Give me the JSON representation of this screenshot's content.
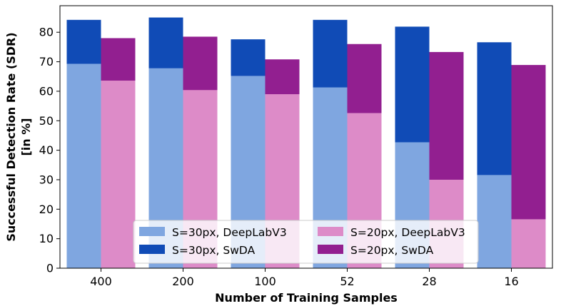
{
  "chart_data": {
    "type": "bar",
    "xlabel": "Number of Training Samples",
    "ylabel_lines": [
      "Successful Detection Rate (SDR)",
      "[in %]"
    ],
    "categories": [
      "400",
      "200",
      "100",
      "52",
      "28",
      "16"
    ],
    "ylim": [
      0,
      89
    ],
    "yticks": [
      0,
      10,
      20,
      30,
      40,
      50,
      60,
      70,
      80
    ],
    "grid": false,
    "legend_placement": "bottom-center",
    "series": [
      {
        "name": "S=30px, DeepLabV3",
        "color": "#7fa6e0",
        "group": "S=30px",
        "layer": "front",
        "values": [
          69.3,
          67.8,
          65.2,
          61.3,
          42.7,
          31.6
        ]
      },
      {
        "name": "S=30px, SwDA",
        "color": "#104bb6",
        "group": "S=30px",
        "layer": "back",
        "values": [
          84.2,
          85.0,
          77.6,
          84.2,
          81.9,
          76.6
        ]
      },
      {
        "name": "S=20px, DeepLabV3",
        "color": "#dd8bc8",
        "group": "S=20px",
        "layer": "front",
        "values": [
          63.6,
          60.4,
          59.0,
          52.6,
          30.0,
          16.6
        ]
      },
      {
        "name": "S=20px, SwDA",
        "color": "#921f90",
        "group": "S=20px",
        "layer": "back",
        "values": [
          78.0,
          78.5,
          70.8,
          76.0,
          73.3,
          68.9
        ]
      }
    ]
  }
}
